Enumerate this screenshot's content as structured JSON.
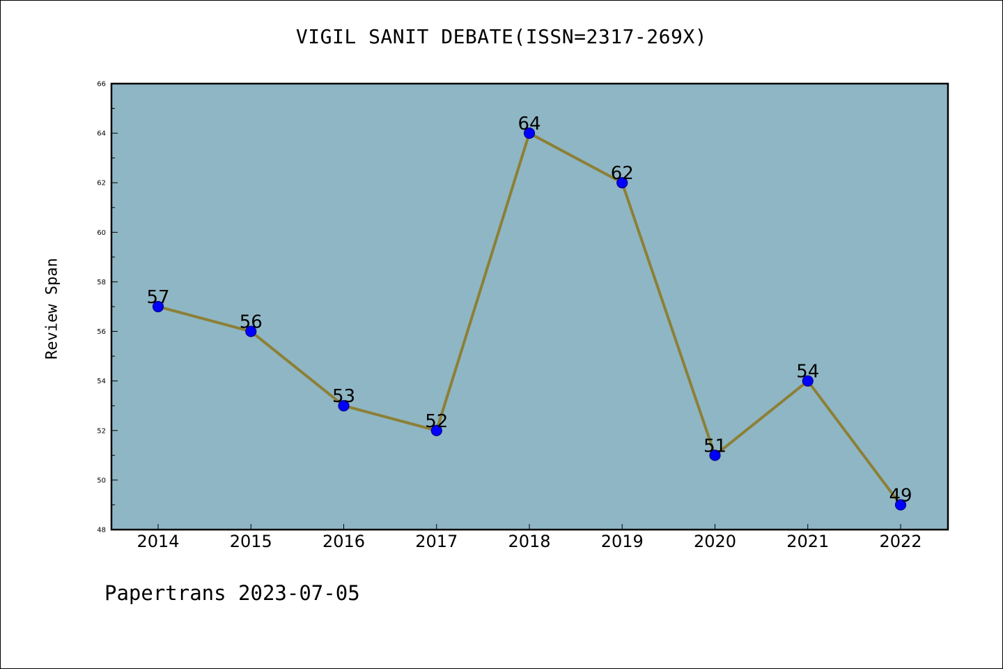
{
  "footer": {
    "note": "Papertrans 2023-07-05"
  },
  "chart_data": {
    "type": "line",
    "title": "VIGIL SANIT DEBATE(ISSN=2317-269X)",
    "xlabel": "",
    "ylabel": "Review Span",
    "categories": [
      "2014",
      "2015",
      "2016",
      "2017",
      "2018",
      "2019",
      "2020",
      "2021",
      "2022"
    ],
    "series": [
      {
        "values": [
          57,
          56,
          53,
          52,
          64,
          62,
          51,
          54,
          49
        ]
      }
    ],
    "data_labels": [
      "57",
      "56",
      "53",
      "52",
      "64",
      "62",
      "51",
      "54",
      "49"
    ],
    "ylim": [
      48,
      66
    ],
    "yticks": [
      48,
      50,
      52,
      54,
      56,
      58,
      60,
      62,
      64,
      66
    ],
    "yticks_minor": [
      49,
      51,
      53,
      55,
      57,
      59,
      61,
      63,
      65
    ],
    "grid": false,
    "legend": "none",
    "colors": {
      "plot_background": "#8fb6c4",
      "line": "#8c8036",
      "marker_fill": "#0000ff",
      "marker_edge": "#00008b",
      "axes": "#000000"
    }
  }
}
